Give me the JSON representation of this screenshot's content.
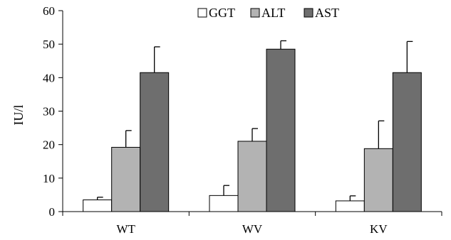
{
  "chart_data": {
    "type": "bar",
    "categories": [
      "WT",
      "WV",
      "KV"
    ],
    "series": [
      {
        "name": "GGT",
        "values": [
          3.5,
          4.8,
          3.2
        ],
        "errors": [
          0.8,
          3.0,
          1.5
        ],
        "color": "#ffffff"
      },
      {
        "name": "ALT",
        "values": [
          19.2,
          21.0,
          18.8
        ],
        "errors": [
          5.0,
          3.8,
          8.3
        ],
        "color": "#b3b3b3"
      },
      {
        "name": "AST",
        "values": [
          41.5,
          48.5,
          41.5
        ],
        "errors": [
          7.7,
          2.5,
          9.3
        ],
        "color": "#6e6e6e"
      }
    ],
    "ylabel": "IU/l",
    "ylim": [
      0,
      60
    ],
    "yticks": [
      0,
      10,
      20,
      30,
      40,
      50,
      60
    ],
    "legend_position": "top-right",
    "grid": false,
    "error_bars": "upper"
  }
}
